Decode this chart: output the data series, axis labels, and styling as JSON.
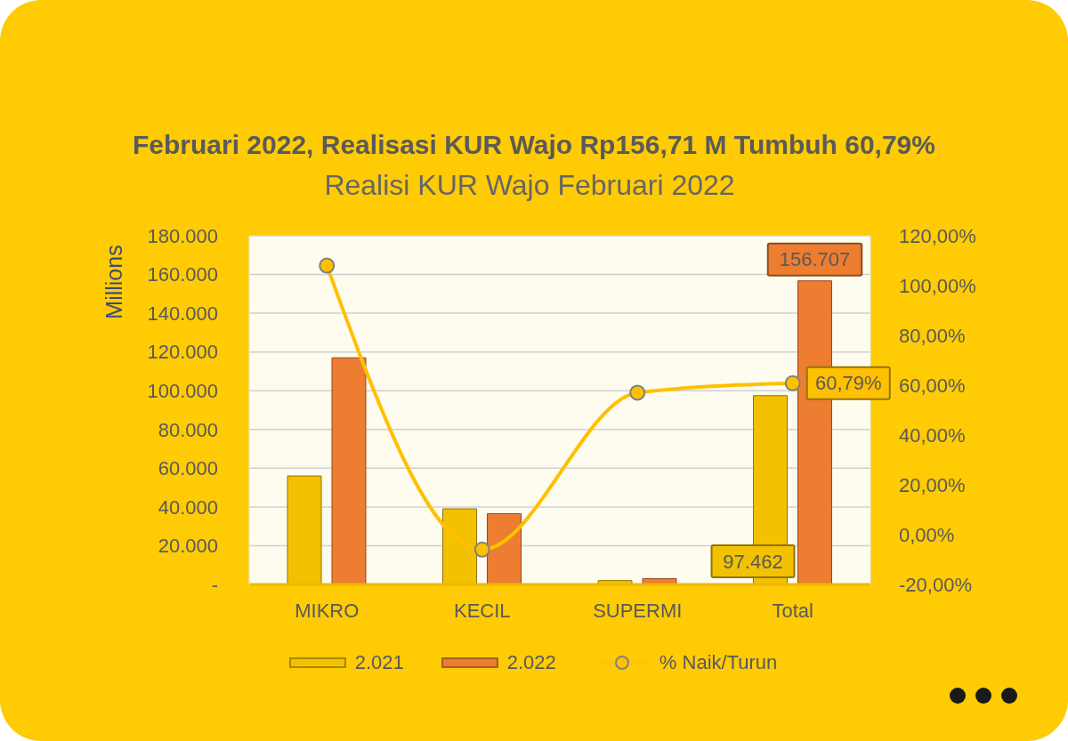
{
  "chart_data": {
    "type": "bar",
    "title": "Februari 2022, Realisasi KUR Wajo Rp156,71 M Tumbuh 60,79%",
    "subtitle": "Realisi KUR Wajo Februari 2022",
    "ylabel": "Millions",
    "categories": [
      "MIKRO",
      "KECIL",
      "SUPERMI",
      "Total"
    ],
    "series": [
      {
        "name": "2.021",
        "color": "#f2c100",
        "values": [
          56000,
          39000,
          2000,
          97462
        ],
        "value_labels": [
          null,
          null,
          null,
          "97.462"
        ]
      },
      {
        "name": "2.022",
        "color": "#ed7d31",
        "values": [
          117000,
          36500,
          3000,
          156707
        ],
        "value_labels": [
          null,
          null,
          null,
          "156.707"
        ]
      },
      {
        "name": "% Naik/Turun",
        "type": "line",
        "axis": "y2",
        "color": "#ffc000",
        "values": [
          108,
          -6,
          57,
          60.79
        ],
        "value_labels": [
          null,
          null,
          null,
          "60,79%"
        ]
      }
    ],
    "ylim": [
      0,
      180000
    ],
    "yticks": [
      {
        "value": 0,
        "label": "-"
      },
      {
        "value": 20000,
        "label": "20.000"
      },
      {
        "value": 40000,
        "label": "40.000"
      },
      {
        "value": 60000,
        "label": "60.000"
      },
      {
        "value": 80000,
        "label": "80.000"
      },
      {
        "value": 100000,
        "label": "100.000"
      },
      {
        "value": 120000,
        "label": "120.000"
      },
      {
        "value": 140000,
        "label": "140.000"
      },
      {
        "value": 160000,
        "label": "160.000"
      },
      {
        "value": 180000,
        "label": "180.000"
      }
    ],
    "y2lim": [
      -20,
      120
    ],
    "y2ticks": [
      {
        "value": -20,
        "label": "-20,00%"
      },
      {
        "value": 0,
        "label": "0,00%"
      },
      {
        "value": 20,
        "label": "20,00%"
      },
      {
        "value": 40,
        "label": "40,00%"
      },
      {
        "value": 60,
        "label": "60,00%"
      },
      {
        "value": 80,
        "label": "80,00%"
      },
      {
        "value": 100,
        "label": "100,00%"
      },
      {
        "value": 120,
        "label": "120,00%"
      }
    ],
    "grid": "y",
    "legend": "bottom",
    "marker": "circle"
  }
}
